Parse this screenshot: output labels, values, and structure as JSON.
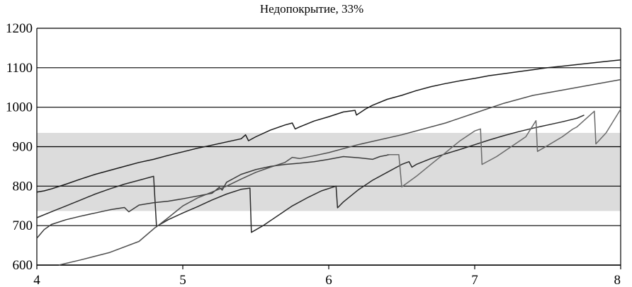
{
  "chart_data": {
    "type": "line",
    "title": "Недопокрытие, 33%",
    "xlabel": "",
    "ylabel": "",
    "xlim": [
      4,
      8
    ],
    "ylim": [
      600,
      1200
    ],
    "x_ticks": [
      4,
      5,
      6,
      7,
      8
    ],
    "y_ticks": [
      600,
      700,
      800,
      900,
      1000,
      1100,
      1200
    ],
    "y_grid": true,
    "band": {
      "from": 737,
      "to": 935,
      "color": "#dcdcdc"
    },
    "series": [
      {
        "color": "#1a1a1a",
        "points": [
          [
            4.0,
            785
          ],
          [
            4.05,
            788
          ],
          [
            4.1,
            793
          ],
          [
            4.2,
            805
          ],
          [
            4.3,
            818
          ],
          [
            4.4,
            830
          ],
          [
            4.5,
            840
          ],
          [
            4.6,
            850
          ],
          [
            4.7,
            860
          ],
          [
            4.8,
            868
          ],
          [
            4.9,
            878
          ],
          [
            5.0,
            887
          ],
          [
            5.1,
            896
          ],
          [
            5.2,
            904
          ],
          [
            5.3,
            912
          ],
          [
            5.4,
            920
          ],
          [
            5.43,
            930
          ],
          [
            5.45,
            915
          ],
          [
            5.5,
            925
          ],
          [
            5.6,
            942
          ],
          [
            5.7,
            955
          ],
          [
            5.75,
            960
          ],
          [
            5.77,
            945
          ],
          [
            5.8,
            950
          ],
          [
            5.9,
            965
          ],
          [
            6.0,
            976
          ],
          [
            6.1,
            988
          ],
          [
            6.18,
            992
          ],
          [
            6.19,
            980
          ],
          [
            6.25,
            995
          ],
          [
            6.3,
            1005
          ],
          [
            6.4,
            1020
          ],
          [
            6.5,
            1030
          ],
          [
            6.6,
            1042
          ],
          [
            6.7,
            1052
          ],
          [
            6.8,
            1060
          ],
          [
            6.9,
            1067
          ],
          [
            7.0,
            1073
          ],
          [
            7.1,
            1080
          ],
          [
            7.2,
            1085
          ],
          [
            7.3,
            1090
          ],
          [
            7.4,
            1095
          ],
          [
            7.5,
            1100
          ],
          [
            7.6,
            1104
          ],
          [
            7.7,
            1108
          ],
          [
            7.8,
            1112
          ],
          [
            7.9,
            1116
          ],
          [
            8.0,
            1120
          ]
        ]
      },
      {
        "color": "#2a2a2a",
        "points": [
          [
            4.0,
            720
          ],
          [
            4.1,
            735
          ],
          [
            4.2,
            750
          ],
          [
            4.3,
            765
          ],
          [
            4.4,
            780
          ],
          [
            4.5,
            793
          ],
          [
            4.6,
            805
          ],
          [
            4.7,
            815
          ],
          [
            4.8,
            825
          ],
          [
            4.82,
            698
          ],
          [
            4.9,
            715
          ],
          [
            5.0,
            732
          ],
          [
            5.1,
            748
          ],
          [
            5.2,
            765
          ],
          [
            5.3,
            780
          ],
          [
            5.4,
            792
          ],
          [
            5.46,
            795
          ],
          [
            5.47,
            683
          ],
          [
            5.55,
            700
          ],
          [
            5.65,
            725
          ],
          [
            5.75,
            750
          ],
          [
            5.85,
            770
          ],
          [
            5.95,
            788
          ],
          [
            6.05,
            800
          ],
          [
            6.06,
            745
          ],
          [
            6.1,
            760
          ],
          [
            6.2,
            790
          ],
          [
            6.3,
            815
          ],
          [
            6.4,
            835
          ],
          [
            6.5,
            855
          ],
          [
            6.55,
            862
          ],
          [
            6.57,
            848
          ],
          [
            6.6,
            855
          ],
          [
            6.7,
            870
          ],
          [
            6.8,
            882
          ],
          [
            6.9,
            893
          ],
          [
            7.0,
            905
          ],
          [
            7.1,
            917
          ],
          [
            7.2,
            928
          ],
          [
            7.3,
            938
          ],
          [
            7.4,
            947
          ],
          [
            7.5,
            955
          ],
          [
            7.6,
            963
          ],
          [
            7.7,
            972
          ],
          [
            7.75,
            980
          ]
        ]
      },
      {
        "color": "#3a3a3a",
        "points": [
          [
            4.0,
            668
          ],
          [
            4.05,
            690
          ],
          [
            4.1,
            703
          ],
          [
            4.2,
            715
          ],
          [
            4.3,
            724
          ],
          [
            4.4,
            732
          ],
          [
            4.5,
            740
          ],
          [
            4.6,
            746
          ],
          [
            4.63,
            735
          ],
          [
            4.7,
            752
          ],
          [
            4.8,
            758
          ],
          [
            4.9,
            762
          ],
          [
            5.0,
            768
          ],
          [
            5.1,
            775
          ],
          [
            5.2,
            782
          ],
          [
            5.25,
            797
          ],
          [
            5.27,
            790
          ],
          [
            5.3,
            810
          ],
          [
            5.4,
            830
          ],
          [
            5.5,
            842
          ],
          [
            5.6,
            850
          ],
          [
            5.7,
            855
          ],
          [
            5.8,
            858
          ],
          [
            5.9,
            862
          ],
          [
            6.0,
            868
          ],
          [
            6.1,
            875
          ],
          [
            6.2,
            872
          ],
          [
            6.3,
            868
          ],
          [
            6.35,
            875
          ],
          [
            6.42,
            880
          ]
        ]
      },
      {
        "color": "#505050",
        "points": [
          [
            4.15,
            600
          ],
          [
            4.3,
            613
          ],
          [
            4.5,
            632
          ],
          [
            4.7,
            660
          ],
          [
            4.81,
            695
          ],
          [
            4.82,
            697
          ],
          [
            4.9,
            720
          ],
          [
            5.0,
            750
          ],
          [
            5.1,
            770
          ],
          [
            5.2,
            785
          ],
          [
            5.3,
            800
          ],
          [
            5.4,
            818
          ],
          [
            5.5,
            835
          ],
          [
            5.6,
            848
          ],
          [
            5.7,
            860
          ],
          [
            5.75,
            873
          ],
          [
            5.8,
            870
          ],
          [
            5.9,
            877
          ],
          [
            6.0,
            885
          ],
          [
            6.2,
            905
          ],
          [
            6.5,
            930
          ],
          [
            6.8,
            960
          ],
          [
            7.0,
            985
          ],
          [
            7.2,
            1010
          ],
          [
            7.4,
            1030
          ],
          [
            7.7,
            1050
          ],
          [
            8.0,
            1070
          ]
        ]
      },
      {
        "color": "#6a6a6a",
        "points": [
          [
            6.4,
            880
          ],
          [
            6.48,
            880
          ],
          [
            6.5,
            798
          ],
          [
            6.6,
            825
          ],
          [
            6.7,
            855
          ],
          [
            6.8,
            885
          ],
          [
            6.9,
            915
          ],
          [
            7.0,
            940
          ],
          [
            7.04,
            945
          ],
          [
            7.05,
            855
          ],
          [
            7.15,
            875
          ],
          [
            7.25,
            900
          ],
          [
            7.35,
            925
          ],
          [
            7.42,
            966
          ],
          [
            7.43,
            888
          ],
          [
            7.5,
            903
          ],
          [
            7.6,
            925
          ],
          [
            7.67,
            944
          ],
          [
            7.7,
            950
          ],
          [
            7.82,
            990
          ],
          [
            7.83,
            907
          ],
          [
            7.9,
            935
          ],
          [
            8.0,
            995
          ]
        ]
      }
    ]
  }
}
